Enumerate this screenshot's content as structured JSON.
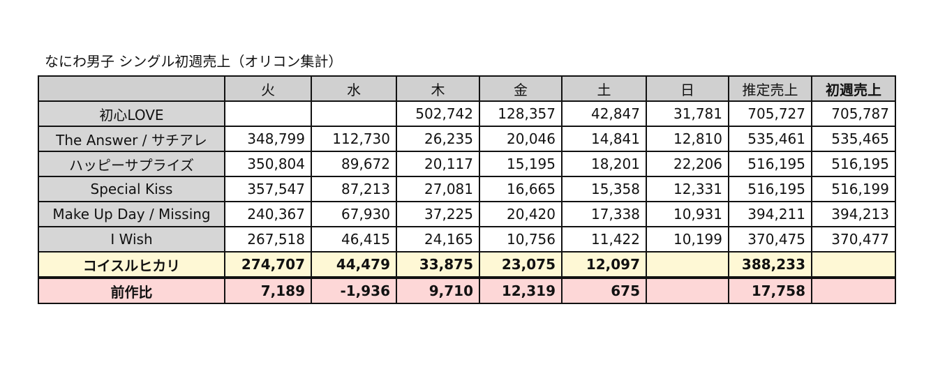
{
  "title": "なにわ男子 シングル初週売上（オリコン集計）",
  "header": {
    "blank": "",
    "columns": [
      "火",
      "水",
      "木",
      "金",
      "土",
      "日",
      "推定売上",
      "初週売上"
    ]
  },
  "rows": [
    {
      "name": "初心LOVE",
      "tue": "",
      "wed": "",
      "thu": "502,742",
      "fri": "128,357",
      "sat": "42,847",
      "sun": "31,781",
      "estimated": "705,727",
      "first_week": "705,787"
    },
    {
      "name": "The Answer / サチアレ",
      "tue": "348,799",
      "wed": "112,730",
      "thu": "26,235",
      "fri": "20,046",
      "sat": "14,841",
      "sun": "12,810",
      "estimated": "535,461",
      "first_week": "535,465"
    },
    {
      "name": "ハッピーサプライズ",
      "tue": "350,804",
      "wed": "89,672",
      "thu": "20,117",
      "fri": "15,195",
      "sat": "18,201",
      "sun": "22,206",
      "estimated": "516,195",
      "first_week": "516,195"
    },
    {
      "name": "Special Kiss",
      "tue": "357,547",
      "wed": "87,213",
      "thu": "27,081",
      "fri": "16,665",
      "sat": "15,358",
      "sun": "12,331",
      "estimated": "516,195",
      "first_week": "516,199"
    },
    {
      "name": "Make Up Day / Missing",
      "tue": "240,367",
      "wed": "67,930",
      "thu": "37,225",
      "fri": "20,420",
      "sat": "17,338",
      "sun": "10,931",
      "estimated": "394,211",
      "first_week": "394,213"
    },
    {
      "name": "I Wish",
      "tue": "267,518",
      "wed": "46,415",
      "thu": "24,165",
      "fri": "10,756",
      "sat": "11,422",
      "sun": "10,199",
      "estimated": "370,475",
      "first_week": "370,477"
    }
  ],
  "current": {
    "name": "コイスルヒカリ",
    "tue": "274,707",
    "wed": "44,479",
    "thu": "33,875",
    "fri": "23,075",
    "sat": "12,097",
    "sun": "",
    "estimated": "388,233",
    "first_week": ""
  },
  "diff": {
    "name": "前作比",
    "tue": "7,189",
    "wed": "-1,936",
    "thu": "9,710",
    "fri": "12,319",
    "sat": "675",
    "sun": "",
    "estimated": "17,758",
    "first_week": ""
  },
  "colors": {
    "header_bg": "#d0d0d0",
    "name_bg": "#d6d6d6",
    "current_row_bg": "#fef8d5",
    "diff_row_bg": "#fdd7d7",
    "border": "#111111"
  }
}
